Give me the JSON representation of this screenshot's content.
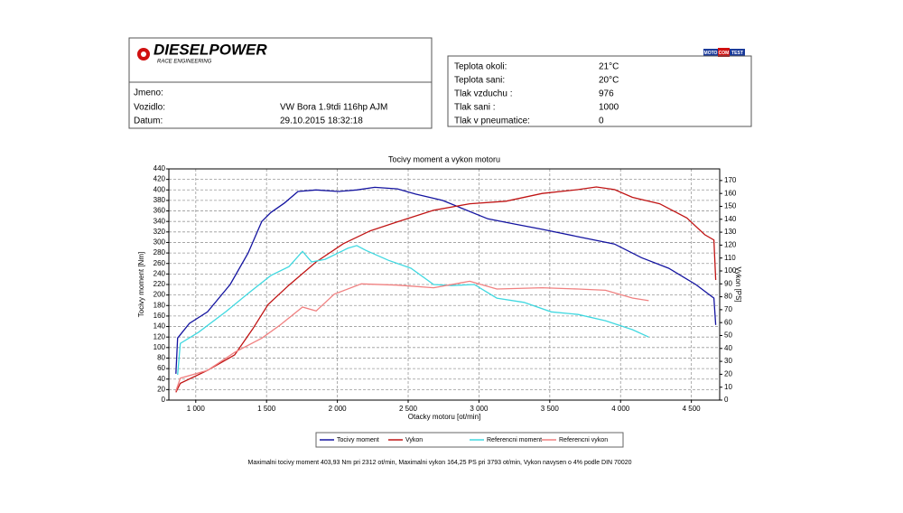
{
  "header": {
    "logo": "DIESELPOWER",
    "logo_subtitle": "RACE ENGINEERING",
    "badge": [
      "MOTO",
      "COM",
      "TEST"
    ]
  },
  "vehicle": {
    "rows": [
      {
        "label": "Jmeno:"
      },
      {
        "label": "Vozidlo:",
        "value": "VW Bora 1.9tdi 116hp AJM"
      },
      {
        "label": "Datum:",
        "value": "29.10.2015 18:32:18"
      }
    ]
  },
  "conditions": {
    "rows": [
      {
        "label": "Teplota okoli:",
        "value": "21°C"
      },
      {
        "label": "Teplota sani:",
        "value": "20°C"
      },
      {
        "label": "Tlak vzduchu :",
        "value": "976"
      },
      {
        "label": "Tlak sani :",
        "value": "1000"
      },
      {
        "label": "Tlak v pneumatice:",
        "value": "0"
      }
    ]
  },
  "chart_data": {
    "type": "line",
    "title": "Tocivy moment a vykon motoru",
    "x_label": "Otacky motoru [ot/min]",
    "y_label": "Tocivy moment [Nm]",
    "y2_label": "Vykon [PS]",
    "xlim": [
      810,
      4700
    ],
    "xticks": [
      {
        "value": 1000,
        "label": "1 000"
      },
      {
        "value": 1500,
        "label": "1 500"
      },
      {
        "value": 2000,
        "label": "2 000"
      },
      {
        "value": 2500,
        "label": "2 500"
      },
      {
        "value": 3000,
        "label": "3 000"
      },
      {
        "value": 3500,
        "label": "3 500"
      },
      {
        "value": 4000,
        "label": "4 000"
      },
      {
        "value": 4500,
        "label": "4 500"
      }
    ],
    "ylim": [
      0,
      440
    ],
    "yticks": [
      0,
      20,
      40,
      60,
      80,
      100,
      120,
      140,
      160,
      180,
      200,
      220,
      240,
      260,
      280,
      300,
      320,
      340,
      360,
      380,
      400,
      420,
      440
    ],
    "y2lim": [
      0,
      179
    ],
    "y2ticks": [
      0,
      10,
      20,
      30,
      40,
      50,
      60,
      70,
      80,
      90,
      100,
      110,
      120,
      130,
      140,
      150,
      160,
      170
    ],
    "grid": true,
    "series": [
      {
        "name": "Tocivy moment",
        "color": "#1414a0",
        "axis": "y",
        "x": [
          860,
          872,
          955,
          1083,
          1243,
          1370,
          1466,
          1530,
          1626,
          1722,
          1850,
          2009,
          2137,
          2264,
          2424,
          2552,
          2743,
          2871,
          3063,
          3254,
          3446,
          3701,
          3957,
          4148,
          4340,
          4531,
          4659,
          4672
        ],
        "values": [
          50,
          118,
          146,
          168,
          220,
          280,
          340,
          357,
          375,
          397,
          400,
          397,
          400,
          405,
          402,
          392,
          380,
          366,
          345,
          335,
          325,
          311,
          297,
          271,
          251,
          220,
          194,
          143
        ]
      },
      {
        "name": "Vykon",
        "color": "#c01414",
        "axis": "y2",
        "x": [
          860,
          891,
          1083,
          1275,
          1402,
          1511,
          1658,
          1850,
          2041,
          2232,
          2424,
          2680,
          2935,
          3190,
          3446,
          3701,
          3829,
          3957,
          4084,
          4276,
          4468,
          4595,
          4659,
          4672
        ],
        "values": [
          6,
          13,
          23,
          35,
          55,
          74,
          89,
          107,
          121,
          131,
          138,
          147,
          152,
          154,
          160,
          163,
          165,
          163,
          157,
          152,
          141,
          128,
          124,
          93
        ]
      },
      {
        "name": "Referencni moment",
        "color": "#40d8e0",
        "axis": "y",
        "x": [
          872,
          891,
          1019,
          1211,
          1370,
          1530,
          1658,
          1754,
          1818,
          1914,
          2073,
          2137,
          2201,
          2360,
          2520,
          2680,
          2807,
          2967,
          3126,
          3318,
          3510,
          3701,
          3893,
          4084,
          4199
        ],
        "values": [
          48,
          108,
          129,
          168,
          203,
          237,
          254,
          283,
          263,
          268,
          289,
          294,
          285,
          266,
          251,
          220,
          218,
          220,
          194,
          186,
          168,
          163,
          151,
          134,
          120
        ]
      },
      {
        "name": "Referencni vykon",
        "color": "#f08080",
        "axis": "y2",
        "x": [
          860,
          891,
          1083,
          1275,
          1466,
          1594,
          1754,
          1850,
          1978,
          2169,
          2424,
          2680,
          2935,
          3126,
          3446,
          3701,
          3893,
          4084,
          4199
        ],
        "values": [
          7,
          17,
          23,
          37,
          48,
          58,
          72,
          69,
          82,
          90,
          89,
          87,
          92,
          86,
          87,
          86,
          85,
          79,
          77
        ]
      }
    ]
  },
  "footer": "Maximalni tocivy moment 403,93 Nm pri 2312 ot/min,  Maximalni vykon 164,25 PS pri 3793 ot/min,  Vykon navysen o 4% podle DIN 70020"
}
